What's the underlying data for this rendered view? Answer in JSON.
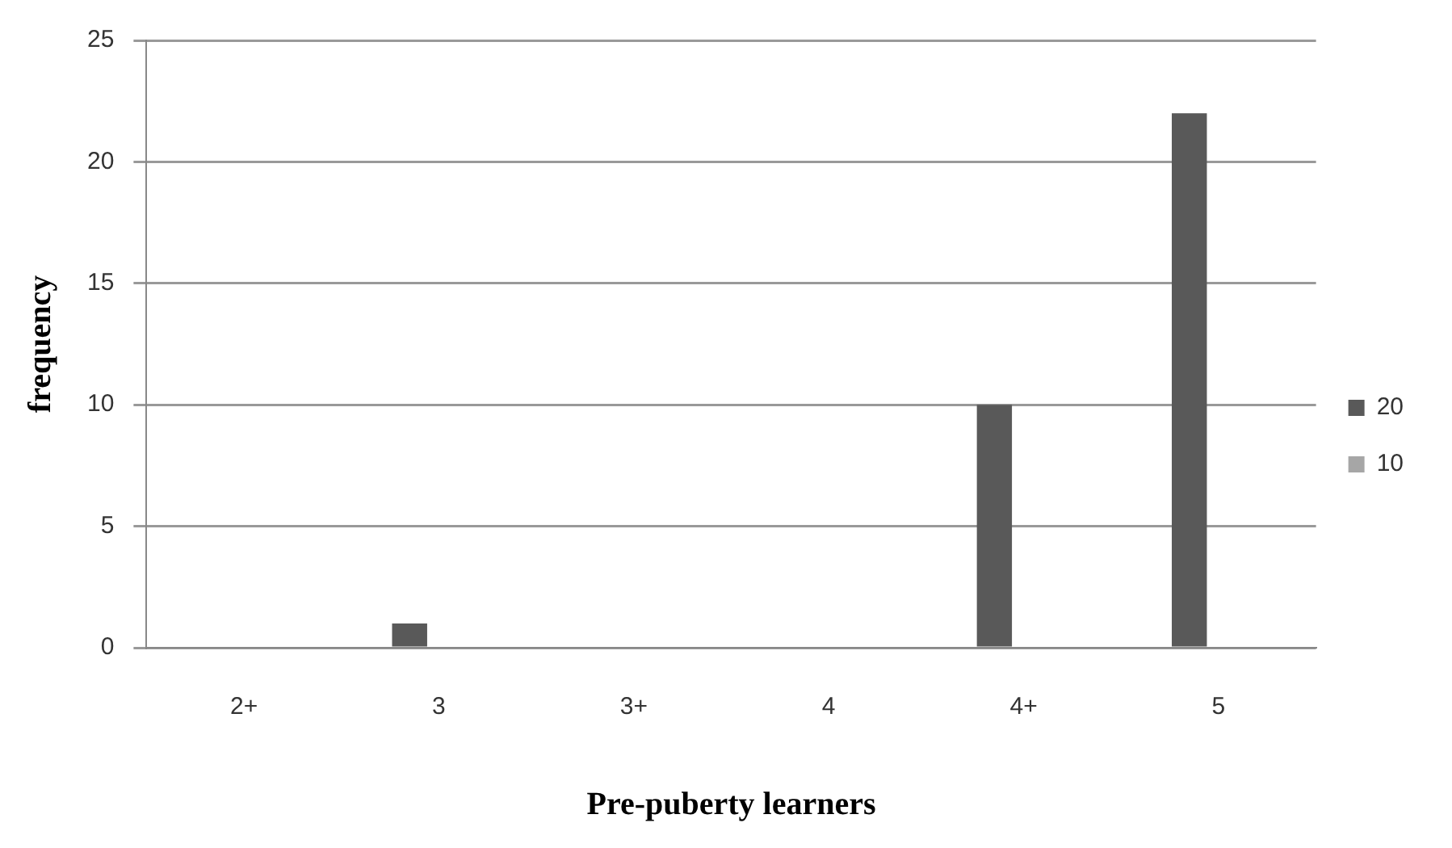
{
  "chart_data": {
    "type": "bar",
    "xlabel": "Pre-puberty learners",
    "ylabel": "frequency",
    "categories": [
      "2+",
      "3",
      "3+",
      "4",
      "4+",
      "5"
    ],
    "series": [
      {
        "name": "20",
        "color": "#595959",
        "values": [
          0,
          1,
          0,
          0,
          10,
          22
        ]
      },
      {
        "name": "10",
        "color": "#a6a6a6",
        "values": [
          0,
          0,
          0,
          0,
          0,
          0
        ]
      }
    ],
    "ylim": [
      0,
      25
    ],
    "yticks": [
      0,
      5,
      10,
      15,
      20,
      25
    ],
    "grid": "y",
    "legend": "right"
  }
}
